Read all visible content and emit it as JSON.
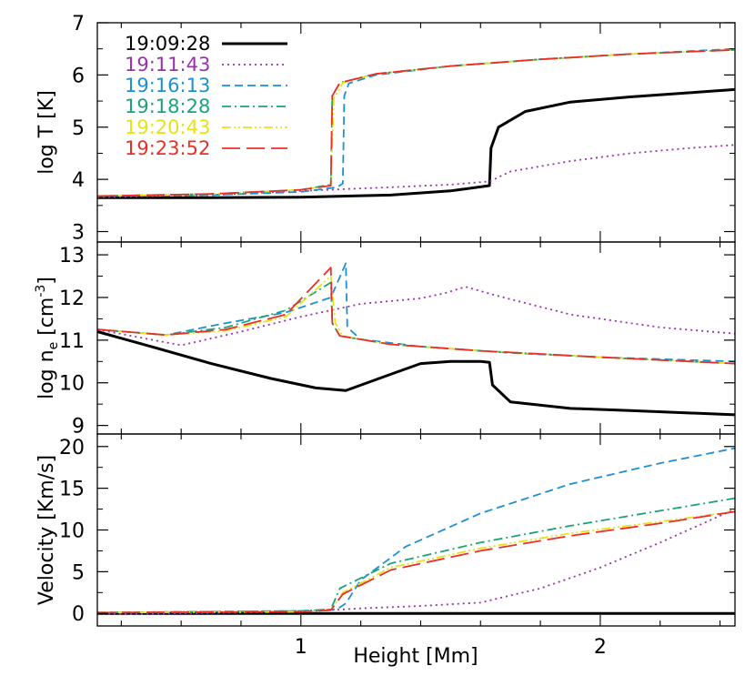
{
  "figure": {
    "xlabel": "Height [Mm]",
    "x_ticks": [
      "1",
      "2"
    ],
    "x_tick_values": [
      1,
      2
    ]
  },
  "legend": [
    {
      "label": "19:09:28",
      "color": "#000000",
      "style": "solid"
    },
    {
      "label": "19:11:43",
      "color": "#9b30b0",
      "style": "dotted"
    },
    {
      "label": "19:16:13",
      "color": "#1e8fd0",
      "style": "dashed"
    },
    {
      "label": "19:18:28",
      "color": "#1aa37a",
      "style": "dashdot"
    },
    {
      "label": "19:20:43",
      "color": "#e6e21a",
      "style": "dashdotdot"
    },
    {
      "label": "19:23:52",
      "color": "#e8302a",
      "style": "longdash"
    }
  ],
  "chart_data": [
    {
      "type": "line",
      "ylabel_pre": "log T [K]",
      "ylim": [
        2.8,
        7.0
      ],
      "xlim": [
        0.32,
        2.45
      ],
      "y_ticks": [
        "3",
        "4",
        "5",
        "6",
        "7"
      ],
      "series": [
        {
          "name": "19:09:28",
          "x": [
            0.32,
            0.7,
            1.0,
            1.3,
            1.5,
            1.63,
            1.635,
            1.66,
            1.75,
            1.9,
            2.1,
            2.3,
            2.45
          ],
          "y": [
            3.65,
            3.65,
            3.66,
            3.7,
            3.78,
            3.88,
            4.6,
            5.0,
            5.3,
            5.48,
            5.58,
            5.66,
            5.72
          ]
        },
        {
          "name": "19:11:43",
          "x": [
            0.32,
            0.7,
            1.0,
            1.3,
            1.5,
            1.63,
            1.7,
            1.9,
            2.1,
            2.3,
            2.45
          ],
          "y": [
            3.66,
            3.7,
            3.78,
            3.85,
            3.9,
            3.96,
            4.15,
            4.35,
            4.5,
            4.6,
            4.66
          ]
        },
        {
          "name": "19:16:13",
          "x": [
            0.32,
            0.7,
            1.0,
            1.12,
            1.14,
            1.145,
            1.16,
            1.25,
            1.5,
            1.8,
            2.1,
            2.45
          ],
          "y": [
            3.68,
            3.7,
            3.76,
            3.85,
            3.92,
            5.6,
            5.84,
            6.0,
            6.17,
            6.3,
            6.4,
            6.5
          ]
        },
        {
          "name": "19:18:28",
          "x": [
            0.32,
            0.7,
            1.0,
            1.1,
            1.105,
            1.13,
            1.25,
            1.5,
            1.8,
            2.1,
            2.45
          ],
          "y": [
            3.68,
            3.72,
            3.8,
            3.9,
            5.6,
            5.85,
            6.02,
            6.17,
            6.3,
            6.4,
            6.48
          ]
        },
        {
          "name": "19:20:43",
          "x": [
            0.32,
            0.7,
            1.0,
            1.1,
            1.11,
            1.14,
            1.25,
            1.5,
            1.8,
            2.1,
            2.45
          ],
          "y": [
            3.68,
            3.72,
            3.8,
            3.88,
            5.55,
            5.85,
            6.02,
            6.17,
            6.3,
            6.4,
            6.48
          ]
        },
        {
          "name": "19:23:52",
          "x": [
            0.32,
            0.7,
            1.0,
            1.1,
            1.105,
            1.13,
            1.25,
            1.5,
            1.8,
            2.1,
            2.45
          ],
          "y": [
            3.68,
            3.72,
            3.8,
            3.88,
            5.6,
            5.85,
            6.02,
            6.17,
            6.3,
            6.4,
            6.48
          ]
        }
      ]
    },
    {
      "type": "line",
      "ylabel_pre": "log n",
      "ylabel_sub": "e",
      "ylabel_post": " [cm",
      "ylabel_sup": "-3",
      "ylabel_end": "]",
      "ylim": [
        8.8,
        13.3
      ],
      "xlim": [
        0.32,
        2.45
      ],
      "y_ticks": [
        "9",
        "10",
        "11",
        "12",
        "13"
      ],
      "series": [
        {
          "name": "19:09:28",
          "x": [
            0.32,
            0.5,
            0.7,
            0.9,
            1.05,
            1.15,
            1.3,
            1.4,
            1.5,
            1.6,
            1.63,
            1.64,
            1.7,
            1.9,
            2.1,
            2.45
          ],
          "y": [
            11.2,
            10.85,
            10.45,
            10.1,
            9.88,
            9.82,
            10.2,
            10.45,
            10.5,
            10.5,
            10.48,
            9.95,
            9.55,
            9.4,
            9.35,
            9.25
          ]
        },
        {
          "name": "19:11:43",
          "x": [
            0.32,
            0.6,
            0.8,
            1.0,
            1.2,
            1.4,
            1.48,
            1.55,
            1.65,
            1.9,
            2.2,
            2.45
          ],
          "y": [
            11.25,
            10.88,
            11.2,
            11.55,
            11.85,
            11.98,
            12.1,
            12.25,
            12.05,
            11.6,
            11.3,
            11.15
          ]
        },
        {
          "name": "19:16:13",
          "x": [
            0.32,
            0.55,
            0.75,
            0.95,
            1.1,
            1.15,
            1.155,
            1.2,
            1.4,
            1.7,
            2.0,
            2.45
          ],
          "y": [
            11.25,
            11.12,
            11.4,
            11.65,
            12.0,
            12.8,
            11.3,
            11.02,
            10.85,
            10.7,
            10.6,
            10.5
          ]
        },
        {
          "name": "19:18:28",
          "x": [
            0.32,
            0.55,
            0.75,
            0.95,
            1.1,
            1.105,
            1.13,
            1.3,
            1.6,
            2.0,
            2.45
          ],
          "y": [
            11.25,
            11.12,
            11.3,
            11.7,
            12.35,
            11.4,
            11.1,
            10.9,
            10.75,
            10.6,
            10.45
          ]
        },
        {
          "name": "19:20:43",
          "x": [
            0.32,
            0.55,
            0.75,
            0.95,
            1.1,
            1.115,
            1.14,
            1.3,
            1.6,
            2.0,
            2.45
          ],
          "y": [
            11.25,
            11.12,
            11.22,
            11.55,
            12.5,
            11.4,
            11.1,
            10.9,
            10.75,
            10.6,
            10.45
          ]
        },
        {
          "name": "19:23:52",
          "x": [
            0.32,
            0.55,
            0.75,
            0.95,
            1.1,
            1.105,
            1.13,
            1.3,
            1.6,
            2.0,
            2.45
          ],
          "y": [
            11.25,
            11.12,
            11.25,
            11.6,
            12.7,
            11.4,
            11.1,
            10.9,
            10.75,
            10.6,
            10.45
          ]
        }
      ]
    },
    {
      "type": "line",
      "ylabel_pre": "Velocity [Km/s]",
      "ylim": [
        -1.5,
        21.5
      ],
      "xlim": [
        0.32,
        2.45
      ],
      "y_ticks": [
        "0",
        "5",
        "10",
        "15",
        "20"
      ],
      "series": [
        {
          "name": "19:09:28",
          "x": [
            0.32,
            2.45
          ],
          "y": [
            0,
            0
          ]
        },
        {
          "name": "19:11:43",
          "x": [
            0.32,
            1.0,
            1.2,
            1.4,
            1.6,
            1.8,
            2.0,
            2.2,
            2.45
          ],
          "y": [
            -0.1,
            0.2,
            0.6,
            0.9,
            1.3,
            3.0,
            5.5,
            8.5,
            12.5
          ]
        },
        {
          "name": "19:16:13",
          "x": [
            0.32,
            1.0,
            1.12,
            1.15,
            1.2,
            1.35,
            1.6,
            1.9,
            2.2,
            2.45
          ],
          "y": [
            0.1,
            0.3,
            0.5,
            1.2,
            4.0,
            8.0,
            12.0,
            15.5,
            18.0,
            19.8
          ]
        },
        {
          "name": "19:18:28",
          "x": [
            0.32,
            1.0,
            1.1,
            1.13,
            1.3,
            1.6,
            1.9,
            2.2,
            2.45
          ],
          "y": [
            0.1,
            0.3,
            0.5,
            3.0,
            6.0,
            8.5,
            10.5,
            12.3,
            13.8
          ]
        },
        {
          "name": "19:20:43",
          "x": [
            0.32,
            1.0,
            1.1,
            1.14,
            1.3,
            1.6,
            1.9,
            2.2,
            2.45
          ],
          "y": [
            0.1,
            0.2,
            0.4,
            2.5,
            5.5,
            7.8,
            9.6,
            11.0,
            12.2
          ]
        },
        {
          "name": "19:23:52",
          "x": [
            0.32,
            1.0,
            1.1,
            1.14,
            1.3,
            1.6,
            1.9,
            2.2,
            2.45
          ],
          "y": [
            0.1,
            0.2,
            0.4,
            2.3,
            5.2,
            7.5,
            9.3,
            10.8,
            12.2
          ]
        }
      ]
    }
  ]
}
